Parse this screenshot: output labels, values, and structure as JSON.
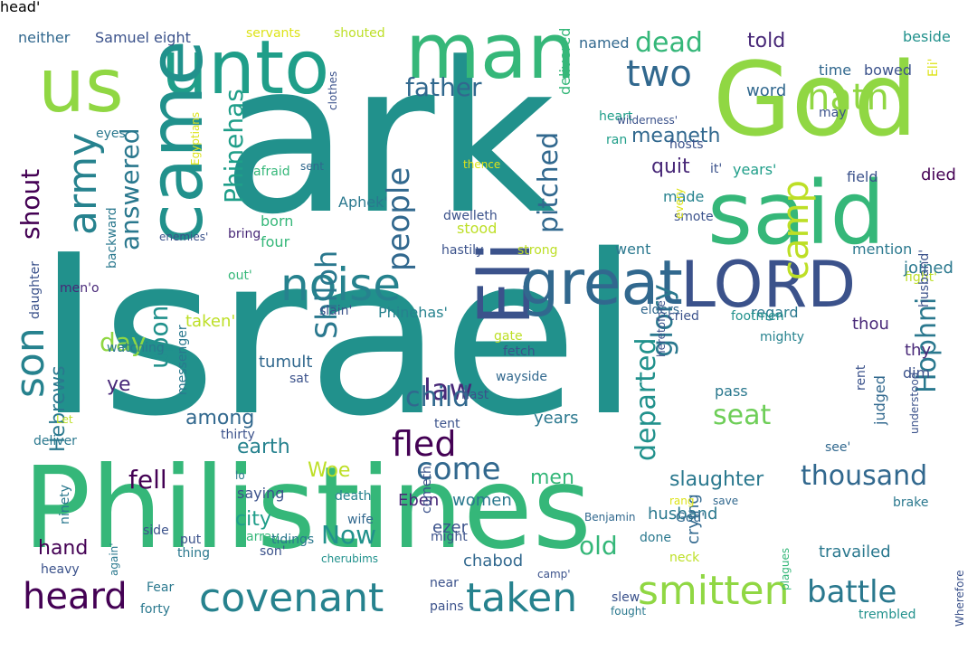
{
  "words": [
    {
      "t": "Israel",
      "c": "#21918c"
    },
    {
      "t": "ark",
      "c": "#21918c"
    },
    {
      "t": "Philistines",
      "c": "#35b779"
    },
    {
      "t": "God",
      "c": "#90d743"
    },
    {
      "t": "said",
      "c": "#35b779"
    },
    {
      "t": "man",
      "c": "#35b779"
    },
    {
      "t": "unto",
      "c": "#1f9e89"
    },
    {
      "t": "us",
      "c": "#90d743"
    },
    {
      "t": "came",
      "c": "#21918c"
    },
    {
      "t": "LORD",
      "c": "#3b528b"
    },
    {
      "t": "Eli",
      "c": "#3b528b"
    },
    {
      "t": "great",
      "c": "#31688e"
    },
    {
      "t": "noise",
      "c": "#26828e"
    },
    {
      "t": "covenant",
      "c": "#26828e"
    },
    {
      "t": "smitten",
      "c": "#90d743"
    },
    {
      "t": "taken",
      "c": "#26828e"
    },
    {
      "t": "heard",
      "c": "#440154"
    },
    {
      "t": "son",
      "c": "#26828e"
    },
    {
      "t": "army",
      "c": "#26828e"
    },
    {
      "t": "camp",
      "c": "#bddf26"
    },
    {
      "t": "hath",
      "c": "#90d743"
    },
    {
      "t": "two",
      "c": "#31688e"
    },
    {
      "t": "battle",
      "c": "#2a788e"
    },
    {
      "t": "fled",
      "c": "#440154"
    },
    {
      "t": "people",
      "c": "#31688e"
    },
    {
      "t": "come",
      "c": "#31688e"
    },
    {
      "t": "law",
      "c": "#482878"
    },
    {
      "t": "Shiloh",
      "c": "#2a788e"
    },
    {
      "t": "child",
      "c": "#31688e"
    },
    {
      "t": "glory",
      "c": "#2a788e"
    },
    {
      "t": "Hophni",
      "c": "#2a788e"
    },
    {
      "t": "Phinehas",
      "c": "#1f9e89"
    },
    {
      "t": "father",
      "c": "#31688e"
    },
    {
      "t": "dead",
      "c": "#35b779"
    },
    {
      "t": "pitched",
      "c": "#31688e"
    },
    {
      "t": "departed",
      "c": "#21918c"
    },
    {
      "t": "thousand",
      "c": "#31688e"
    },
    {
      "t": "seat",
      "c": "#6ece58"
    },
    {
      "t": "upon",
      "c": "#21918c"
    },
    {
      "t": "answered",
      "c": "#2a788e"
    },
    {
      "t": "shout",
      "c": "#440154"
    },
    {
      "t": "day",
      "c": "#90d743"
    },
    {
      "t": "fell",
      "c": "#440154"
    },
    {
      "t": "Now",
      "c": "#21918c"
    },
    {
      "t": "old",
      "c": "#35b779"
    },
    {
      "t": "slaughter",
      "c": "#2a788e"
    },
    {
      "t": "told",
      "c": "#482878"
    },
    {
      "t": "quit",
      "c": "#482878"
    },
    {
      "t": "meaneth",
      "c": "#31688e"
    },
    {
      "t": "city",
      "c": "#1f9e89"
    },
    {
      "t": "earth",
      "c": "#26828e"
    },
    {
      "t": "men",
      "c": "#35b779"
    },
    {
      "t": "hand",
      "c": "#440154"
    },
    {
      "t": "among",
      "c": "#31688e"
    },
    {
      "t": "Hebrews",
      "c": "#2a788e"
    },
    {
      "t": "ye",
      "c": "#482878"
    },
    {
      "t": "Woe",
      "c": "#bddf26"
    },
    {
      "t": "tumult",
      "c": "#31688e"
    },
    {
      "t": "taken'",
      "c": "#bddf26"
    },
    {
      "t": "Eben",
      "c": "#482878"
    },
    {
      "t": "women",
      "c": "#2a788e"
    },
    {
      "t": "ezer",
      "c": "#3b528b"
    },
    {
      "t": "chabod",
      "c": "#31688e"
    },
    {
      "t": "husband",
      "c": "#2a788e"
    },
    {
      "t": "travailed",
      "c": "#2a788e"
    },
    {
      "t": "crying",
      "c": "#31688e"
    },
    {
      "t": "years",
      "c": "#2a788e"
    },
    {
      "t": "Samuel",
      "c": "#3b528b"
    },
    {
      "t": "neither",
      "c": "#31688e"
    },
    {
      "t": "eight",
      "c": "#3b528b"
    },
    {
      "t": "servants",
      "c": "#dde318"
    },
    {
      "t": "shouted",
      "c": "#bddf26"
    },
    {
      "t": "named",
      "c": "#31688e"
    },
    {
      "t": "beside",
      "c": "#21918c"
    },
    {
      "t": "word",
      "c": "#31688e"
    },
    {
      "t": "bowed",
      "c": "#3b528b"
    },
    {
      "t": "time",
      "c": "#31688e"
    },
    {
      "t": "fight'",
      "c": "#bddf26"
    },
    {
      "t": "Eli'",
      "c": "#dde318"
    },
    {
      "t": "joined",
      "c": "#2a788e"
    },
    {
      "t": "delivered",
      "c": "#35b779"
    },
    {
      "t": "judged",
      "c": "#31688e"
    },
    {
      "t": "died",
      "c": "#440154"
    },
    {
      "t": "field",
      "c": "#3b528b"
    },
    {
      "t": "years'",
      "c": "#1f9e89"
    },
    {
      "t": "heart",
      "c": "#1f9e89"
    },
    {
      "t": "may",
      "c": "#3b528b"
    },
    {
      "t": "ran",
      "c": "#1f9e89"
    },
    {
      "t": "hosts",
      "c": "#3b528b"
    },
    {
      "t": "mention",
      "c": "#2a788e"
    },
    {
      "t": "stood",
      "c": "#bddf26"
    },
    {
      "t": "dwelleth",
      "c": "#3b528b"
    },
    {
      "t": "strong",
      "c": "#bddf26"
    },
    {
      "t": "hastily",
      "c": "#3b528b"
    },
    {
      "t": "made",
      "c": "#26828e"
    },
    {
      "t": "smote",
      "c": "#3b528b"
    },
    {
      "t": "went",
      "c": "#2a788e"
    },
    {
      "t": "Aphek'",
      "c": "#2a788e"
    },
    {
      "t": "born",
      "c": "#35b779"
    },
    {
      "t": "four",
      "c": "#35b779"
    },
    {
      "t": "afraid",
      "c": "#35b779"
    },
    {
      "t": "sent",
      "c": "#31688e"
    },
    {
      "t": "eyes",
      "c": "#2a788e"
    },
    {
      "t": "bring",
      "c": "#482878"
    },
    {
      "t": "out'",
      "c": "#35b779"
    },
    {
      "t": "slain'",
      "c": "#3b528b"
    },
    {
      "t": "Phinehas'",
      "c": "#26828e"
    },
    {
      "t": "men'o",
      "c": "#482878"
    },
    {
      "t": "regard",
      "c": "#2a788e"
    },
    {
      "t": "elders",
      "c": "#31688e"
    },
    {
      "t": "cried",
      "c": "#3b528b"
    },
    {
      "t": "footmen'",
      "c": "#21918c"
    },
    {
      "t": "mighty",
      "c": "#26828e"
    },
    {
      "t": "thou",
      "c": "#482878"
    },
    {
      "t": "thy",
      "c": "#482878"
    },
    {
      "t": "husband'",
      "c": "#3b528b"
    },
    {
      "t": "gate",
      "c": "#bddf26"
    },
    {
      "t": "fetch",
      "c": "#3b528b"
    },
    {
      "t": "watching",
      "c": "#2a788e"
    },
    {
      "t": "messenger",
      "c": "#2a788e"
    },
    {
      "t": "wayside",
      "c": "#31688e"
    },
    {
      "t": "sat",
      "c": "#3b528b"
    },
    {
      "t": "daughter",
      "c": "#3b528b"
    },
    {
      "t": "pass",
      "c": "#2a788e"
    },
    {
      "t": "dim",
      "c": "#3b528b"
    },
    {
      "t": "tent",
      "c": "#3b528b"
    },
    {
      "t": "thirty",
      "c": "#3b528b"
    },
    {
      "t": "Let",
      "c": "#bddf26"
    },
    {
      "t": "deliver",
      "c": "#2a788e"
    },
    {
      "t": "lo",
      "c": "#2a788e"
    },
    {
      "t": "saying",
      "c": "#3b528b"
    },
    {
      "t": "death",
      "c": "#26828e"
    },
    {
      "t": "wife",
      "c": "#31688e"
    },
    {
      "t": "array",
      "c": "#35b779"
    },
    {
      "t": "son'",
      "c": "#3b528b"
    },
    {
      "t": "put",
      "c": "#3b528b"
    },
    {
      "t": "thing",
      "c": "#2a788e"
    },
    {
      "t": "Fear",
      "c": "#2a788e"
    },
    {
      "t": "forty",
      "c": "#2a788e"
    },
    {
      "t": "heavy",
      "c": "#3b528b"
    },
    {
      "t": "near",
      "c": "#3b528b"
    },
    {
      "t": "pains",
      "c": "#3b528b"
    },
    {
      "t": "might",
      "c": "#3b528b"
    },
    {
      "t": "cherubims",
      "c": "#21918c"
    },
    {
      "t": "camp'",
      "c": "#3b528b"
    },
    {
      "t": "slew",
      "c": "#3b528b"
    },
    {
      "t": "fought",
      "c": "#2a788e"
    },
    {
      "t": "done",
      "c": "#2a788e"
    },
    {
      "t": "neck",
      "c": "#bddf26"
    },
    {
      "t": "Benjamin",
      "c": "#31688e"
    },
    {
      "t": "God'",
      "c": "#31688e"
    },
    {
      "t": "rang",
      "c": "#dde318"
    },
    {
      "t": "save",
      "c": "#31688e"
    },
    {
      "t": "brake",
      "c": "#2a788e"
    },
    {
      "t": "trembled",
      "c": "#21918c"
    },
    {
      "t": "see'",
      "c": "#31688e"
    },
    {
      "t": "hast",
      "c": "#3b528b"
    },
    {
      "t": "thence",
      "c": "#dde318"
    },
    {
      "t": "every",
      "c": "#dde318"
    },
    {
      "t": "it'",
      "c": "#3b528b"
    },
    {
      "t": "side",
      "c": "#3b528b"
    },
    {
      "t": "ninety",
      "c": "#2a788e"
    },
    {
      "t": "backward",
      "c": "#2a788e"
    },
    {
      "t": "Egyptians",
      "c": "#dde318"
    },
    {
      "t": "clothes",
      "c": "#3b528b"
    },
    {
      "t": "enemies'",
      "c": "#3b528b"
    },
    {
      "t": "again'",
      "c": "#2a788e"
    },
    {
      "t": "heretofore'",
      "c": "#3b528b"
    },
    {
      "t": "cometh",
      "c": "#3b528b"
    },
    {
      "t": "tidings",
      "c": "#2a788e"
    },
    {
      "t": "rent",
      "c": "#3b528b"
    },
    {
      "t": "understood",
      "c": "#3b528b"
    },
    {
      "t": "plagues",
      "c": "#35b779"
    },
    {
      "t": "Wherefore",
      "c": "#3b528b"
    },
    {
      "t": "wilderness'",
      "c": "#3b528b"
    },
    {
      "t": "head'",
      "c": "#3b528b"
    }
  ]
}
